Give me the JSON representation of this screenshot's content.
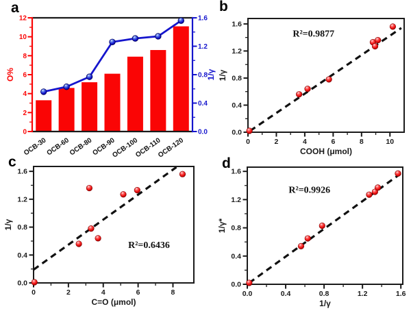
{
  "figure": {
    "panels": [
      {
        "id": "a",
        "label": "a"
      },
      {
        "id": "b",
        "label": "b"
      },
      {
        "id": "c",
        "label": "c"
      },
      {
        "id": "d",
        "label": "d"
      }
    ]
  },
  "colors": {
    "bar_red": "#fa0505",
    "axis_red": "#fa0505",
    "line_blue": "#1515cd",
    "point_red": "#ee1111",
    "point_red_dark": "#8f0000",
    "frame_black": "#1a1a1a",
    "fit_black": "#111111",
    "text_black": "#1a1a1a"
  },
  "chart_data": [
    {
      "panel": "a",
      "type": "bar+line",
      "categories": [
        "OCB-30",
        "OCB-60",
        "OCB-80",
        "OCB-90",
        "OCB-100",
        "OCB-110",
        "OCB-120"
      ],
      "series": [
        {
          "name": "O%",
          "type": "bar",
          "axis": "left",
          "values": [
            3.3,
            4.6,
            5.2,
            6.1,
            7.9,
            8.6,
            11.1
          ]
        },
        {
          "name": "1/γ",
          "type": "line",
          "axis": "right",
          "values": [
            0.56,
            0.63,
            0.77,
            1.26,
            1.31,
            1.34,
            1.56
          ]
        }
      ],
      "left_axis": {
        "label": "O%",
        "range": [
          0,
          12
        ],
        "ticks": [
          "0",
          "2",
          "4",
          "6",
          "8",
          "10",
          "12"
        ]
      },
      "right_axis": {
        "label": "1/γ",
        "range": [
          0,
          1.6
        ],
        "ticks": [
          "0.0",
          "0.4",
          "0.8",
          "1.2",
          "1.6"
        ]
      }
    },
    {
      "panel": "b",
      "type": "scatter",
      "xlabel": "COOH (μmol)",
      "ylabel": "1/γ",
      "annotation": "R²=0.9877",
      "annotation_pos": [
        0.42,
        0.16
      ],
      "xlim": [
        0,
        11
      ],
      "ylim": [
        0,
        1.68
      ],
      "xticks": [
        "0",
        "2",
        "4",
        "6",
        "8",
        "10"
      ],
      "yticks": [
        "0.0",
        "0.4",
        "0.8",
        "1.2",
        "1.6"
      ],
      "points": [
        [
          0.1,
          0.02
        ],
        [
          3.6,
          0.56
        ],
        [
          4.2,
          0.64
        ],
        [
          5.7,
          0.78
        ],
        [
          8.8,
          1.33
        ],
        [
          8.95,
          1.27
        ],
        [
          9.15,
          1.36
        ],
        [
          10.2,
          1.56
        ]
      ],
      "fit_line": {
        "x1": 0.15,
        "y1": 0.02,
        "x2": 10.8,
        "y2": 1.54
      }
    },
    {
      "panel": "c",
      "type": "scatter",
      "xlabel": "C=O (μmol)",
      "ylabel": "1/γ",
      "annotation": "R²=0.6436",
      "annotation_pos": [
        0.72,
        0.7
      ],
      "xlim": [
        0,
        9.2
      ],
      "ylim": [
        0,
        1.67
      ],
      "xticks": [
        "0",
        "2",
        "4",
        "6",
        "8"
      ],
      "yticks": [
        "0.0",
        "0.4",
        "0.8",
        "1.2",
        "1.6"
      ],
      "points": [
        [
          0.05,
          0.01
        ],
        [
          2.6,
          0.56
        ],
        [
          3.2,
          1.36
        ],
        [
          3.3,
          0.78
        ],
        [
          3.7,
          0.64
        ],
        [
          5.15,
          1.27
        ],
        [
          5.95,
          1.33
        ],
        [
          8.55,
          1.56
        ]
      ],
      "fit_line": {
        "x1": 0,
        "y1": 0.19,
        "x2": 8.2,
        "y2": 1.66
      }
    },
    {
      "panel": "d",
      "type": "scatter",
      "xlabel": "1/γ",
      "ylabel": "1/γ*",
      "annotation": "R²=0.9926",
      "annotation_pos": [
        0.4,
        0.22
      ],
      "xlim": [
        0,
        1.62
      ],
      "ylim": [
        0,
        1.66
      ],
      "xticks": [
        "0.0",
        "0.4",
        "0.8",
        "1.2",
        "1.6"
      ],
      "yticks": [
        "0.0",
        "0.4",
        "0.8",
        "1.2",
        "1.6"
      ],
      "points": [
        [
          0.02,
          0.02
        ],
        [
          0.56,
          0.54
        ],
        [
          0.63,
          0.65
        ],
        [
          0.78,
          0.83
        ],
        [
          1.27,
          1.27
        ],
        [
          1.33,
          1.31
        ],
        [
          1.36,
          1.37
        ],
        [
          1.57,
          1.57
        ]
      ],
      "fit_line": {
        "x1": 0.02,
        "y1": 0.02,
        "x2": 1.63,
        "y2": 1.6
      }
    }
  ]
}
